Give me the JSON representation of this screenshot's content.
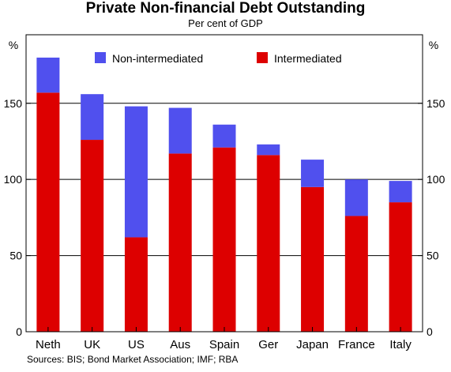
{
  "chart_data": {
    "type": "bar",
    "stacked": true,
    "title": "Private Non-financial Debt Outstanding",
    "subtitle": "Per cent of GDP",
    "y_unit_left": "%",
    "y_unit_right": "%",
    "ylim": [
      0,
      195
    ],
    "yticks": [
      0,
      50,
      100,
      150
    ],
    "grid": true,
    "legend_position": "top-center",
    "categories": [
      "Neth",
      "UK",
      "US",
      "Aus",
      "Spain",
      "Ger",
      "Japan",
      "France",
      "Italy"
    ],
    "series": [
      {
        "name": "Intermediated",
        "color": "#dd0000",
        "values": [
          157,
          126,
          62,
          117,
          121,
          116,
          95,
          76,
          85
        ]
      },
      {
        "name": "Non-intermediated",
        "color": "#5050ee",
        "values": [
          23,
          30,
          86,
          30,
          15,
          7,
          18,
          24,
          14
        ]
      }
    ],
    "legend_order": [
      "Non-intermediated",
      "Intermediated"
    ],
    "source": "Sources: BIS; Bond Market Association; IMF; RBA"
  }
}
